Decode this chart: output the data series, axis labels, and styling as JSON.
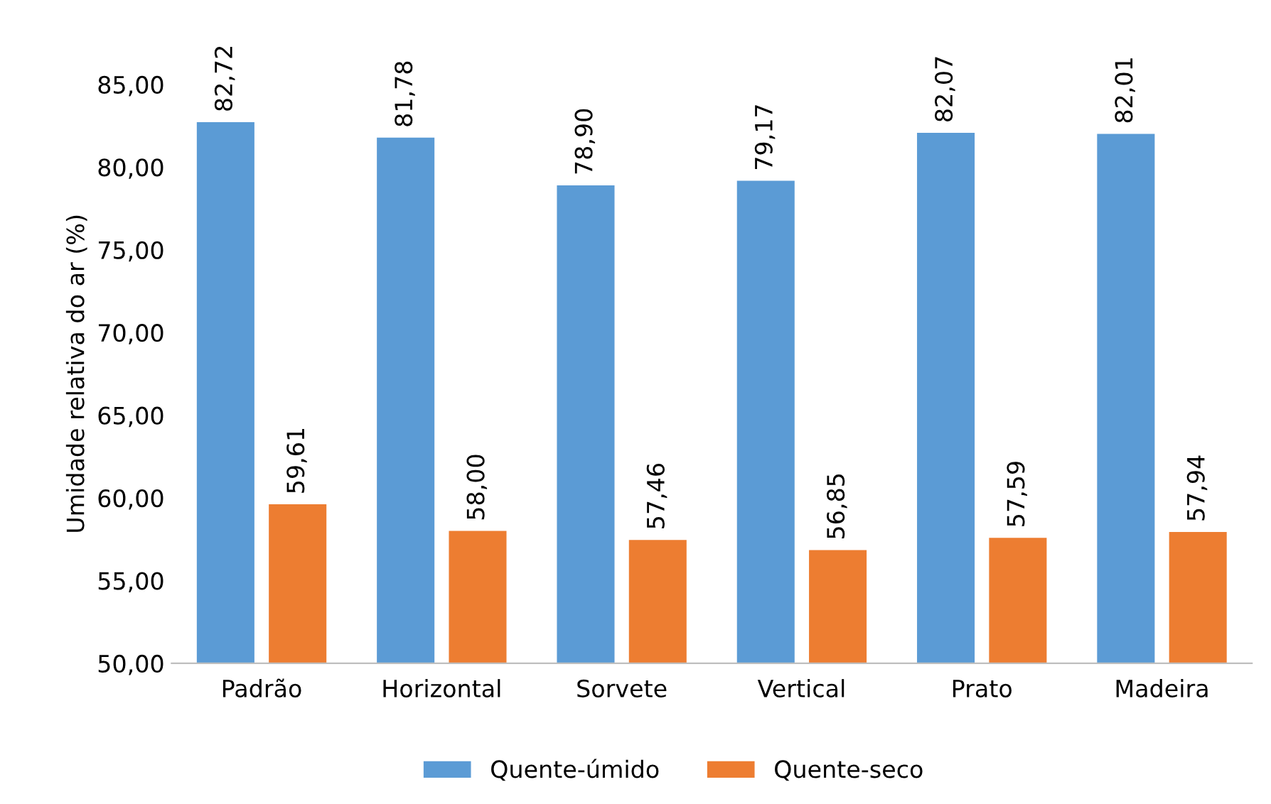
{
  "chart_data": {
    "type": "bar",
    "ylabel": "Umidade relativa do ar (%)",
    "categories": [
      "Padrão",
      "Horizontal",
      "Sorvete",
      "Vertical",
      "Prato",
      "Madeira"
    ],
    "series": [
      {
        "name": "Quente-úmido",
        "color": "#5b9bd5",
        "values": [
          82.72,
          81.78,
          78.9,
          79.17,
          82.07,
          82.01
        ],
        "value_labels": [
          "82,72",
          "81,78",
          "78,90",
          "79,17",
          "82,07",
          "82,01"
        ]
      },
      {
        "name": "Quente-seco",
        "color": "#ed7d31",
        "values": [
          59.61,
          58.0,
          57.46,
          56.85,
          57.59,
          57.94
        ],
        "value_labels": [
          "59,61",
          "58,00",
          "57,46",
          "56,85",
          "57,59",
          "57,94"
        ]
      }
    ],
    "ylim": [
      50,
      85
    ],
    "yticks": [
      {
        "value": 50,
        "label": "50,00"
      },
      {
        "value": 55,
        "label": "55,00"
      },
      {
        "value": 60,
        "label": "60,00"
      },
      {
        "value": 65,
        "label": "65,00"
      },
      {
        "value": 70,
        "label": "70,00"
      },
      {
        "value": 75,
        "label": "75,00"
      },
      {
        "value": 80,
        "label": "80,00"
      },
      {
        "value": 85,
        "label": "85,00"
      }
    ],
    "grid": false,
    "legend": "bottom"
  }
}
